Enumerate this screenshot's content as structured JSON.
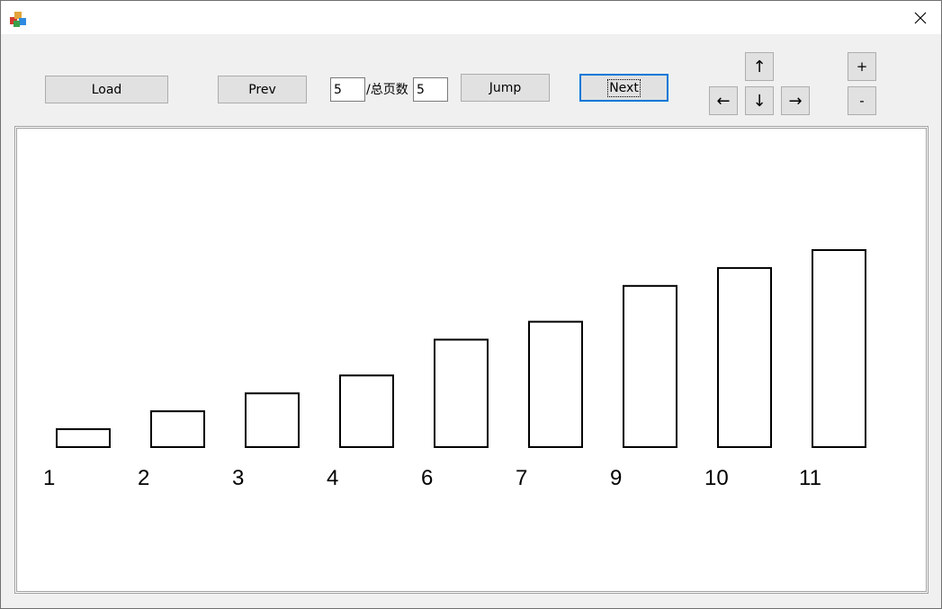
{
  "toolbar": {
    "load_label": "Load",
    "prev_label": "Prev",
    "current_page": "5",
    "total_label": "/总页数",
    "total_pages": "5",
    "jump_label": "Jump",
    "next_label": "Next",
    "up_label": "↑",
    "down_label": "↓",
    "left_label": "←",
    "right_label": "→",
    "zoom_in_label": "+",
    "zoom_out_label": "-"
  },
  "chart_data": {
    "type": "bar",
    "categories": [
      "1",
      "2",
      "3",
      "4",
      "6",
      "7",
      "9",
      "10",
      "11"
    ],
    "values": [
      1,
      2,
      3,
      4,
      6,
      7,
      9,
      10,
      11
    ],
    "ylim": [
      0,
      11
    ],
    "grid": false,
    "bar_fill": "#ffffff",
    "bar_stroke": "#000000"
  },
  "colors": {
    "focus_border": "#0078d7",
    "window_bg": "#f0f0f0"
  }
}
